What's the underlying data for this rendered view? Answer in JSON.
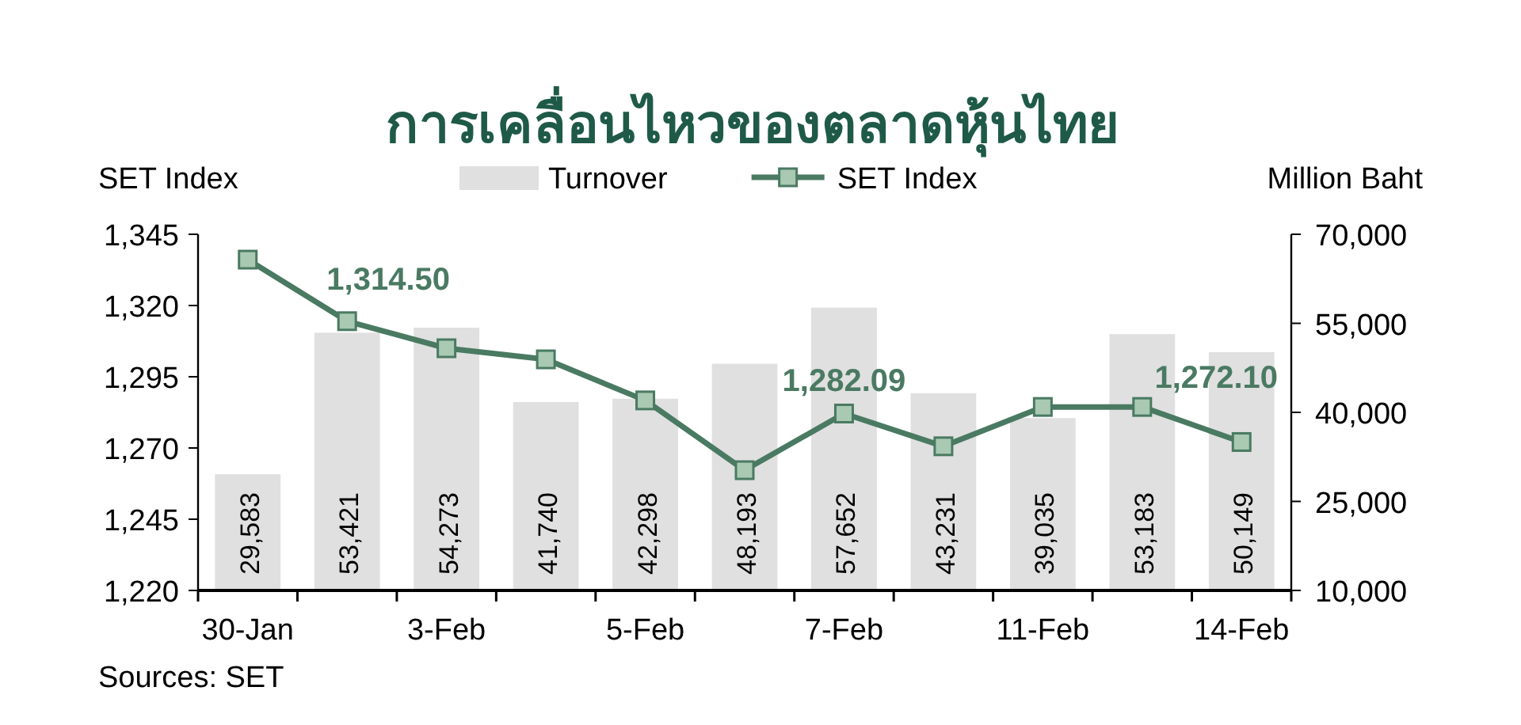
{
  "chart_data": {
    "type": "bar",
    "title": "การเคลื่อนไหวของตลาดหุ้นไทย",
    "ylabel": "SET Index",
    "y2label": "Million Baht",
    "categories": [
      "30-Jan",
      null,
      "3-Feb",
      null,
      "5-Feb",
      null,
      "7-Feb",
      null,
      "11-Feb",
      null,
      "14-Feb"
    ],
    "series": [
      {
        "name": "Turnover",
        "axis": "y2",
        "color": "#e0e0e0",
        "values": [
          29583,
          53421,
          54273,
          41740,
          42298,
          48193,
          57652,
          43231,
          39035,
          53183,
          50149
        ],
        "value_labels": [
          "29,583",
          "53,421",
          "54,273",
          "41,740",
          "42,298",
          "48,193",
          "57,652",
          "43,231",
          "39,035",
          "53,183",
          "50,149"
        ]
      },
      {
        "name": "SET Index",
        "type": "line",
        "axis": "y",
        "color": "#4a7a62",
        "values": [
          1336.1,
          1314.5,
          1305.0,
          1301.1,
          1286.7,
          1262.2,
          1282.09,
          1270.6,
          1284.4,
          1284.4,
          1272.1
        ],
        "value_labels": [
          null,
          "1,314.50",
          null,
          null,
          null,
          null,
          "1,282.09",
          null,
          null,
          null,
          "1,272.10"
        ]
      }
    ],
    "ylim": [
      1220,
      1345
    ],
    "yticks": [
      {
        "value": 1220,
        "label": "1,220"
      },
      {
        "value": 1245,
        "label": "1,245"
      },
      {
        "value": 1270,
        "label": "1,270"
      },
      {
        "value": 1295,
        "label": "1,295"
      },
      {
        "value": 1320,
        "label": "1,320"
      },
      {
        "value": 1345,
        "label": "1,345"
      }
    ],
    "y2lim": [
      10000,
      70000
    ],
    "y2ticks": [
      {
        "value": 10000,
        "label": "10,000"
      },
      {
        "value": 25000,
        "label": "25,000"
      },
      {
        "value": 40000,
        "label": "40,000"
      },
      {
        "value": 55000,
        "label": "55,000"
      },
      {
        "value": 70000,
        "label": "70,000"
      }
    ],
    "legend": "top",
    "grid": false,
    "marker": "square",
    "annotations": [
      "Sources: SET"
    ]
  }
}
